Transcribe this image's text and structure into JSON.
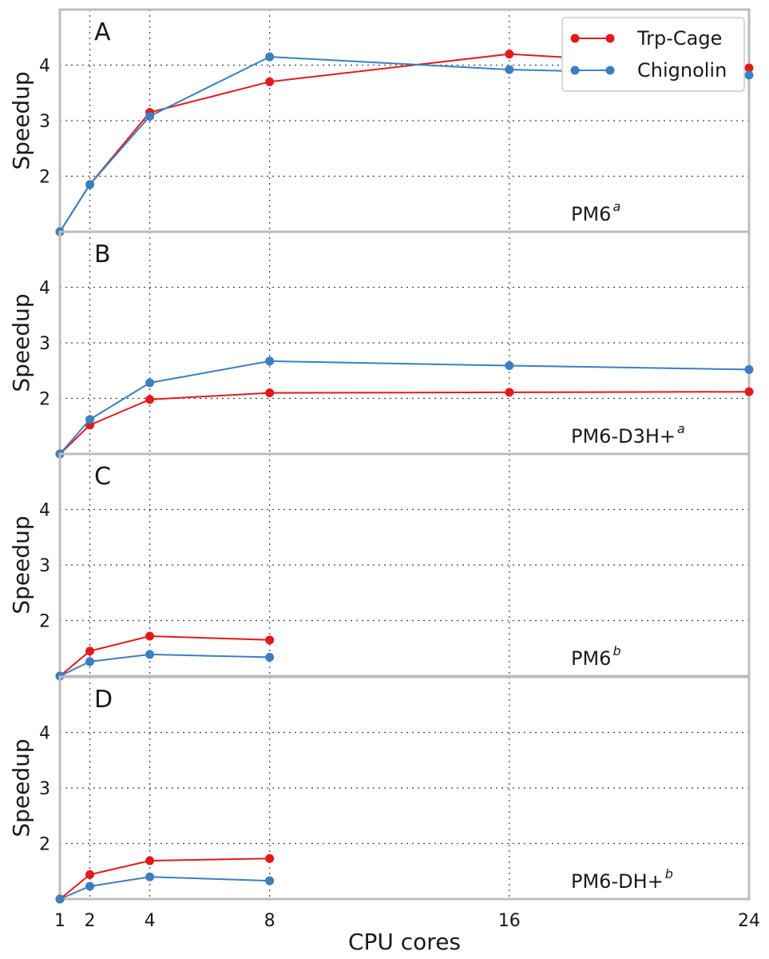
{
  "chart_data": {
    "type": "line",
    "xlabel": "CPU cores",
    "ylabel": "Speedup",
    "x_ticks": [
      1,
      2,
      4,
      8,
      16,
      24
    ],
    "y_ticks": [
      2,
      3,
      4
    ],
    "xlim": [
      1,
      24
    ],
    "ylim": [
      1,
      5
    ],
    "grid": "dotted",
    "legend": {
      "placement": "top-right (panel A)",
      "entries": [
        "Trp-Cage",
        "Chignolin"
      ]
    },
    "series_colors": {
      "Trp-Cage": "#e31a1c",
      "Chignolin": "#3a7fc1"
    },
    "panels": [
      {
        "letter": "A",
        "method": "PM6",
        "method_sup": "a",
        "series": [
          {
            "name": "Trp-Cage",
            "x": [
              1,
              2,
              4,
              8,
              16,
              24
            ],
            "values": [
              1.0,
              1.85,
              3.15,
              3.7,
              4.2,
              3.95
            ]
          },
          {
            "name": "Chignolin",
            "x": [
              1,
              2,
              4,
              8,
              16,
              24
            ],
            "values": [
              1.0,
              1.85,
              3.08,
              4.15,
              3.92,
              3.82
            ]
          }
        ]
      },
      {
        "letter": "B",
        "method": "PM6-D3H+",
        "method_sup": "a",
        "series": [
          {
            "name": "Trp-Cage",
            "x": [
              1,
              2,
              4,
              8,
              16,
              24
            ],
            "values": [
              1.0,
              1.52,
              1.98,
              2.1,
              2.11,
              2.12
            ]
          },
          {
            "name": "Chignolin",
            "x": [
              1,
              2,
              4,
              8,
              16,
              24
            ],
            "values": [
              1.0,
              1.62,
              2.28,
              2.67,
              2.59,
              2.52
            ]
          }
        ]
      },
      {
        "letter": "C",
        "method": "PM6",
        "method_sup": "b",
        "series": [
          {
            "name": "Trp-Cage",
            "x": [
              1,
              2,
              4,
              8
            ],
            "values": [
              1.0,
              1.45,
              1.72,
              1.65
            ]
          },
          {
            "name": "Chignolin",
            "x": [
              1,
              2,
              4,
              8
            ],
            "values": [
              1.0,
              1.26,
              1.39,
              1.34
            ]
          }
        ]
      },
      {
        "letter": "D",
        "method": "PM6-DH+",
        "method_sup": "b",
        "series": [
          {
            "name": "Trp-Cage",
            "x": [
              1,
              2,
              4,
              8
            ],
            "values": [
              1.0,
              1.44,
              1.69,
              1.73
            ]
          },
          {
            "name": "Chignolin",
            "x": [
              1,
              2,
              4,
              8
            ],
            "values": [
              1.0,
              1.23,
              1.4,
              1.33
            ]
          }
        ]
      }
    ]
  }
}
